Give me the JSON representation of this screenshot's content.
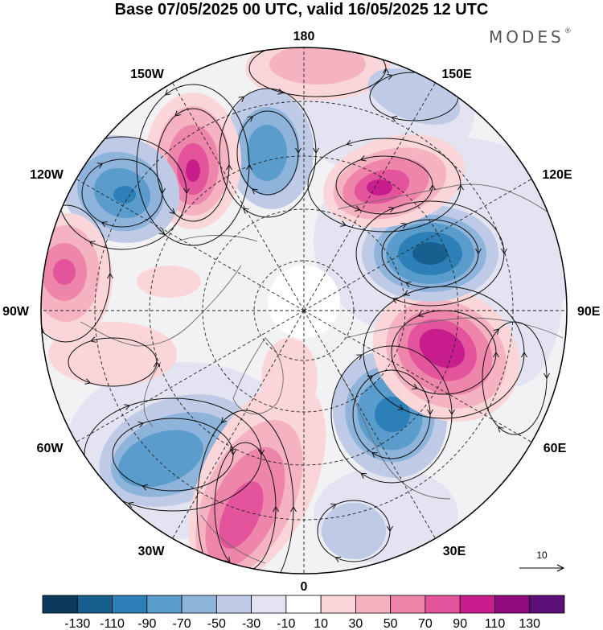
{
  "header": {
    "title": "Base 07/05/2025 00 UTC, valid 16/05/2025 12 UTC",
    "brand": "MODES",
    "brand_mark": "®"
  },
  "map": {
    "projection": "north polar stereographic",
    "longitude_labels": {
      "top": "180",
      "bottom": "0",
      "left": "90W",
      "right": "90E",
      "upper_left_1": "150W",
      "upper_left_2": "120W",
      "upper_right_1": "150E",
      "upper_right_2": "120E",
      "lower_left_1": "60W",
      "lower_left_2": "30W",
      "lower_right_1": "60E",
      "lower_right_2": "30E"
    },
    "vector_key": "10",
    "colors": {
      "neg130": "#0b3a5c",
      "neg110": "#175f8f",
      "neg90": "#2d7fb7",
      "neg70": "#5a9dcc",
      "neg50": "#8fb4dc",
      "neg30": "#bfcbe6",
      "neg10": "#e3e3f1",
      "zero": "#ffffff",
      "pos10": "#fbd6d8",
      "pos30": "#f5b3c1",
      "pos50": "#ee86ac",
      "pos70": "#e4549c",
      "pos90": "#c81d8c",
      "pos110": "#8f0b7d",
      "pos130": "#5a0f76",
      "land": "#efefef"
    }
  },
  "colorbar": {
    "ticks": [
      "-130",
      "-110",
      "-90",
      "-70",
      "-50",
      "-30",
      "-10",
      "10",
      "30",
      "50",
      "70",
      "90",
      "110",
      "130"
    ],
    "colors": [
      "#0b3a5c",
      "#175f8f",
      "#2d7fb7",
      "#5a9dcc",
      "#8fb4dc",
      "#bfcbe6",
      "#e3e3f1",
      "#ffffff",
      "#fbd6d8",
      "#f5b3c1",
      "#ee86ac",
      "#e4549c",
      "#c81d8c",
      "#8f0b7d",
      "#5a0f76"
    ]
  }
}
